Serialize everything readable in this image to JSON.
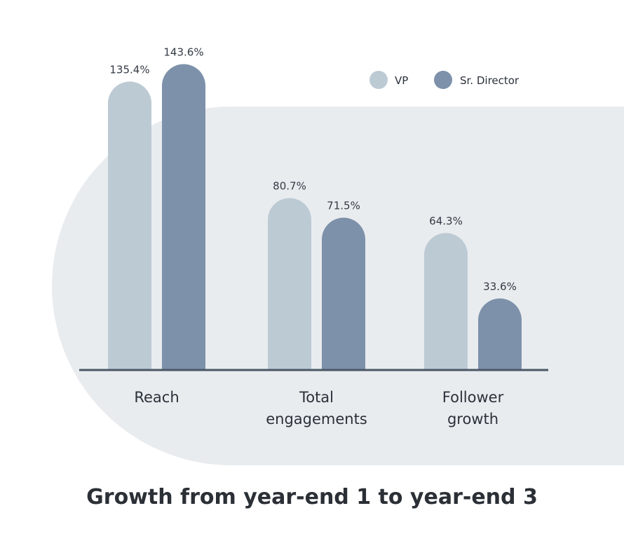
{
  "chart_data": {
    "type": "bar",
    "title": "Growth from year-end 1 to year-end 3",
    "categories": [
      [
        "Reach"
      ],
      [
        "Total",
        "engagements"
      ],
      [
        "Follower",
        "growth"
      ]
    ],
    "series": [
      {
        "name": "VP",
        "color": "#bccad4",
        "values": [
          135.4,
          80.7,
          64.3
        ],
        "labels": [
          "135.4%",
          "80.7%",
          "64.3%"
        ]
      },
      {
        "name": "Sr. Director",
        "color": "#7d91aa",
        "values": [
          143.6,
          71.5,
          33.6
        ],
        "labels": [
          "143.6%",
          "71.5%",
          "33.6%"
        ]
      }
    ],
    "ylim": [
      0,
      150
    ],
    "grid": false,
    "legend": "top-right",
    "colors": {
      "backdrop": "#e9ecef",
      "baseline": "#4b5766",
      "text": "#2b313a"
    }
  }
}
